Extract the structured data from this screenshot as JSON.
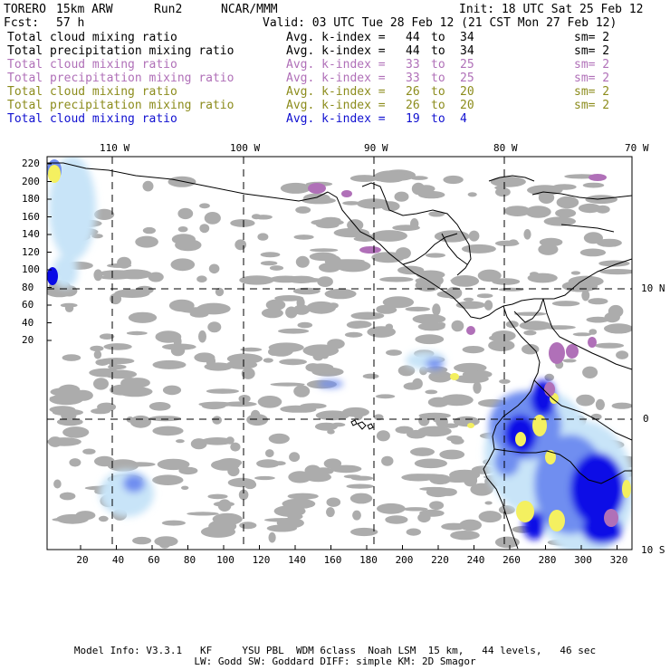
{
  "header": {
    "model": "TORERO",
    "resolution": "15km ARW",
    "run": "Run2",
    "org": "NCAR/MMM",
    "init": "Init: 18 UTC Sat 25 Feb 12",
    "fcst_label": "Fcst:",
    "fcst_value": "57 h",
    "valid": "Valid: 03 UTC Tue 28 Feb 12 (21 CST Mon 27 Feb 12)"
  },
  "legend": [
    {
      "field": "Total cloud mixing ratio",
      "avg": "Avg. k-index =",
      "from": "44",
      "to_word": "to",
      "to": "34",
      "sm": "sm= 2",
      "color": "#000000"
    },
    {
      "field": "Total precipitation mixing ratio",
      "avg": "Avg. k-index =",
      "from": "44",
      "to_word": "to",
      "to": "34",
      "sm": "sm= 2",
      "color": "#000000"
    },
    {
      "field": "Total cloud mixing ratio",
      "avg": "Avg. k-index =",
      "from": "33",
      "to_word": "to",
      "to": "25",
      "sm": "sm= 2",
      "color": "#b070b8"
    },
    {
      "field": "Total precipitation mixing ratio",
      "avg": "Avg. k-index =",
      "from": "33",
      "to_word": "to",
      "to": "25",
      "sm": "sm= 2",
      "color": "#b070b8"
    },
    {
      "field": "Total cloud mixing ratio",
      "avg": "Avg. k-index =",
      "from": "26",
      "to_word": "to",
      "to": "20",
      "sm": "sm= 2",
      "color": "#8c8c1c"
    },
    {
      "field": "Total precipitation mixing ratio",
      "avg": "Avg. k-index =",
      "from": "26",
      "to_word": "to",
      "to": "20",
      "sm": "sm= 2",
      "color": "#8c8c1c"
    },
    {
      "field": "Total cloud mixing ratio",
      "avg": "Avg. k-index =",
      "from": "19",
      "to_word": "to",
      "to": "4",
      "sm": "",
      "color": "#1010d0"
    }
  ],
  "map": {
    "lon_labels": [
      "110 W",
      "100 W",
      "90 W",
      "80 W",
      "70 W"
    ],
    "lat_labels": [
      "10 N",
      "0",
      "10 S"
    ],
    "y_ticks": [
      "220",
      "200",
      "180",
      "160",
      "140",
      "120",
      "100",
      "80",
      "60",
      "40",
      "20"
    ],
    "x_ticks": [
      "20",
      "40",
      "60",
      "80",
      "100",
      "120",
      "140",
      "160",
      "180",
      "200",
      "220",
      "240",
      "260",
      "280",
      "300",
      "320"
    ],
    "colors": {
      "cloud_gray": "#a8a8a8",
      "light_blue": "#c8e4f8",
      "mid_blue": "#6f8ef0",
      "deep_blue": "#0a0ae6",
      "yellow": "#f4f060",
      "purple": "#b070b8"
    }
  },
  "footer": {
    "line1": "Model Info: V3.3.1   KF     YSU PBL  WDM 6class  Noah LSM  15 km,   44 levels,   46 sec",
    "line2": "LW: Godd SW: Goddard DIFF: simple KM: 2D Smagor"
  }
}
